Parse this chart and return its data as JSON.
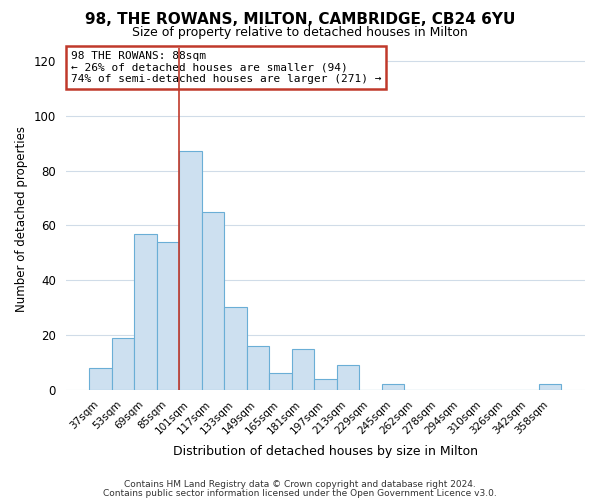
{
  "title": "98, THE ROWANS, MILTON, CAMBRIDGE, CB24 6YU",
  "subtitle": "Size of property relative to detached houses in Milton",
  "xlabel": "Distribution of detached houses by size in Milton",
  "ylabel": "Number of detached properties",
  "footer_line1": "Contains HM Land Registry data © Crown copyright and database right 2024.",
  "footer_line2": "Contains public sector information licensed under the Open Government Licence v3.0.",
  "annotation_title": "98 THE ROWANS: 88sqm",
  "annotation_line2": "← 26% of detached houses are smaller (94)",
  "annotation_line3": "74% of semi-detached houses are larger (271) →",
  "bar_labels": [
    "37sqm",
    "53sqm",
    "69sqm",
    "85sqm",
    "101sqm",
    "117sqm",
    "133sqm",
    "149sqm",
    "165sqm",
    "181sqm",
    "197sqm",
    "213sqm",
    "229sqm",
    "245sqm",
    "262sqm",
    "278sqm",
    "294sqm",
    "310sqm",
    "326sqm",
    "342sqm",
    "358sqm"
  ],
  "bar_values": [
    8,
    19,
    57,
    54,
    87,
    65,
    30,
    16,
    6,
    15,
    4,
    9,
    0,
    2,
    0,
    0,
    0,
    0,
    0,
    0,
    2
  ],
  "bar_color": "#cde0f0",
  "bar_edge_color": "#6aaed6",
  "vline_x": 3.5,
  "vline_color": "#c0392b",
  "ylim": [
    0,
    125
  ],
  "yticks": [
    0,
    20,
    40,
    60,
    80,
    100,
    120
  ],
  "annotation_box_color": "#c0392b",
  "background_color": "#ffffff",
  "plot_background": "#ffffff",
  "grid_color": "#d0dce8",
  "title_fontsize": 11,
  "subtitle_fontsize": 9
}
